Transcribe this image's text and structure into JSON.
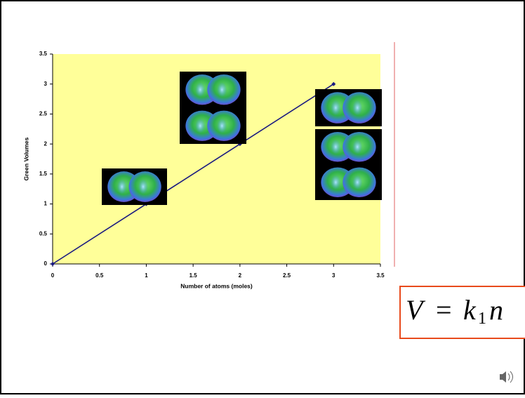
{
  "chart_data": {
    "type": "line",
    "x_label": "Number of atoms (moles)",
    "y_label": "Green Volumes",
    "x": [
      0,
      1,
      2,
      3
    ],
    "series": [
      {
        "color": "#1a1a80",
        "values": [
          0,
          1,
          2,
          3
        ]
      }
    ],
    "xlim": [
      0,
      3.5
    ],
    "ylim": [
      0,
      3.5
    ],
    "xticks": [
      0,
      0.5,
      1,
      1.5,
      2,
      2.5,
      3,
      3.5
    ],
    "yticks": [
      0,
      0.5,
      1,
      1.5,
      2,
      2.5,
      3,
      3.5
    ],
    "background": "#ffff99",
    "equation": {
      "lhs": "V",
      "sign": "=",
      "k": "k",
      "sub": "1",
      "n": "n"
    }
  }
}
